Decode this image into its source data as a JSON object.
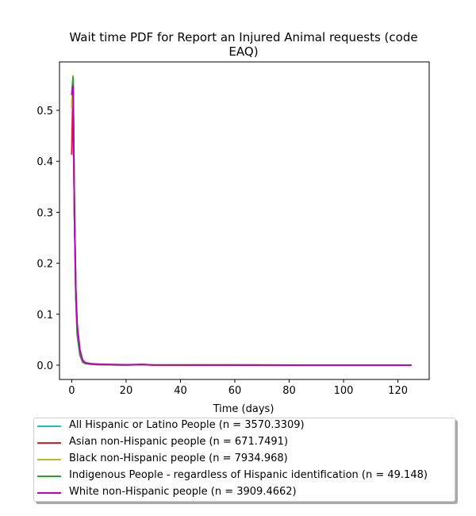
{
  "chart_data": {
    "type": "line",
    "title_line1": "Wait time PDF for Report an Injured Animal  requests (code",
    "title_line2": "EAQ)",
    "xlabel": "Time (days)",
    "ylabel": "",
    "xlim": [
      -4.5,
      131.5
    ],
    "ylim": [
      -0.028,
      0.595
    ],
    "xticks": [
      0,
      20,
      40,
      60,
      80,
      100,
      120
    ],
    "yticks": [
      0.0,
      0.1,
      0.2,
      0.3,
      0.4,
      0.5
    ],
    "ytick_labels": [
      "0.0",
      "0.1",
      "0.2",
      "0.3",
      "0.4",
      "0.5"
    ],
    "legend_location": "below plot",
    "grid": false,
    "series": [
      {
        "name": "All Hispanic or Latino People (n = 3570.3309)",
        "color": "#17becf",
        "x": [
          0,
          0.5,
          1,
          1.5,
          2,
          3,
          4,
          5,
          7,
          10,
          14,
          20,
          26,
          30,
          60,
          90,
          125
        ],
        "y": [
          0.51,
          0.55,
          0.3,
          0.14,
          0.07,
          0.025,
          0.008,
          0.004,
          0.002,
          0.001,
          0.0008,
          0.0005,
          0.0012,
          0.0003,
          0.0002,
          0.0001,
          0.0001
        ]
      },
      {
        "name": "Asian non-Hispanic people (n = 671.7491)",
        "color": "#e41a1c",
        "x": [
          0,
          0.5,
          1,
          1.5,
          2,
          3,
          4,
          5,
          7,
          10,
          14,
          20,
          26,
          30,
          60,
          90,
          125
        ],
        "y": [
          0.413,
          0.548,
          0.3,
          0.14,
          0.07,
          0.025,
          0.008,
          0.004,
          0.002,
          0.001,
          0.0008,
          0.0005,
          0.0012,
          0.0003,
          0.0002,
          0.0001,
          0.0001
        ]
      },
      {
        "name": "Black non-Hispanic people (n = 7934.968)",
        "color": "#bcbd22",
        "x": [
          0,
          0.5,
          1,
          1.5,
          2,
          3,
          4,
          5,
          7,
          10,
          14,
          20,
          26,
          30,
          60,
          90,
          125
        ],
        "y": [
          0.505,
          0.568,
          0.31,
          0.14,
          0.07,
          0.025,
          0.008,
          0.004,
          0.002,
          0.001,
          0.0008,
          0.0005,
          0.0012,
          0.0003,
          0.0002,
          0.0001,
          0.0001
        ]
      },
      {
        "name": "Indigenous People - regardless of Hispanic identification (n = 49.148)",
        "color": "#2ca02c",
        "x": [
          0,
          0.5,
          1,
          1.5,
          2,
          3,
          4,
          5,
          7,
          10,
          14,
          20,
          26,
          30,
          60,
          90,
          125
        ],
        "y": [
          0.53,
          0.565,
          0.3,
          0.13,
          0.06,
          0.02,
          0.006,
          0.003,
          0.002,
          0.001,
          0.0008,
          0.0005,
          0.001,
          0.0003,
          0.0002,
          0.0001,
          0.0001
        ]
      },
      {
        "name": "White non-Hispanic people (n = 3909.4662)",
        "color": "#bf00bf",
        "x": [
          0,
          0.5,
          1,
          1.5,
          2,
          3,
          4,
          5,
          7,
          10,
          14,
          20,
          26,
          30,
          60,
          90,
          125
        ],
        "y": [
          0.53,
          0.548,
          0.3,
          0.15,
          0.08,
          0.03,
          0.01,
          0.005,
          0.003,
          0.002,
          0.0015,
          0.0008,
          0.0015,
          0.0004,
          0.0002,
          0.0001,
          0.0001
        ]
      }
    ]
  }
}
